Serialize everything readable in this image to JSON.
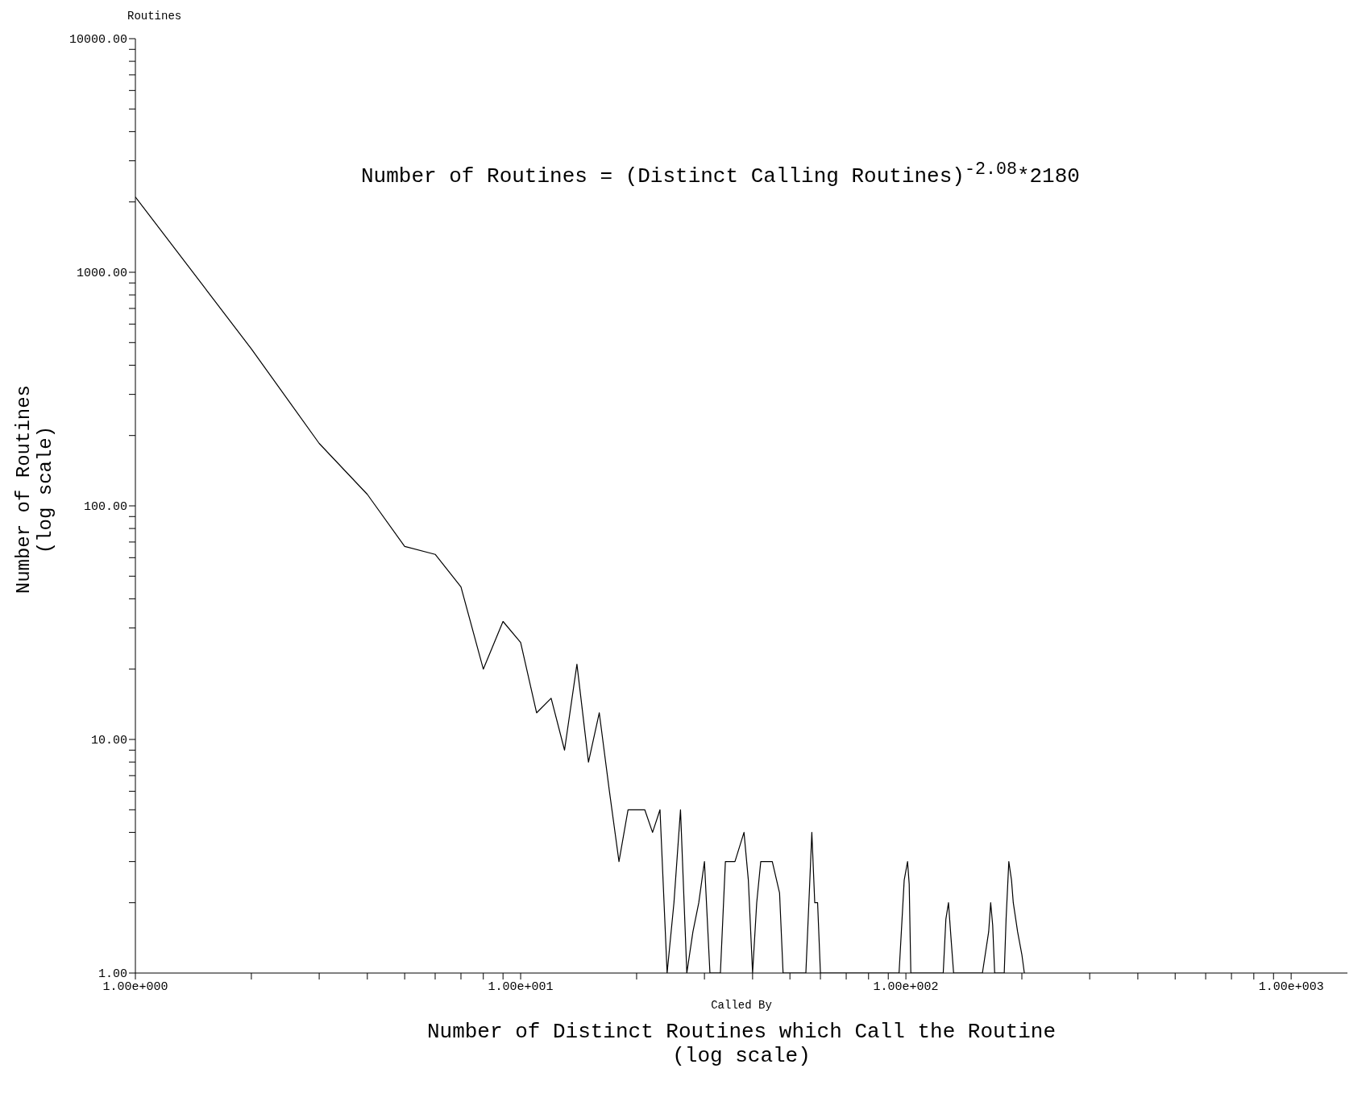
{
  "chart_data": {
    "type": "line",
    "log": "xy",
    "xlabel": "Number of Distinct Routines which Call the Routine\n(log scale)",
    "ylabel": "Number of Routines\n(log scale)",
    "annotations": [
      "Routines",
      "Called By",
      "Number of Routines = (Distinct Calling Routines)$^{-2.08}$*2180"
    ],
    "xlim": [
      1,
      1400
    ],
    "ylim": [
      1,
      10000
    ],
    "xticks": [
      {
        "value": 1,
        "label": "1.00e+000"
      },
      {
        "value": 2,
        "label": null
      },
      {
        "value": 3,
        "label": null
      },
      {
        "value": 4,
        "label": null
      },
      {
        "value": 5,
        "label": null
      },
      {
        "value": 6,
        "label": null
      },
      {
        "value": 7,
        "label": null
      },
      {
        "value": 8,
        "label": null
      },
      {
        "value": 9,
        "label": null
      },
      {
        "value": 10,
        "label": "1.00e+001"
      },
      {
        "value": 20,
        "label": null
      },
      {
        "value": 30,
        "label": null
      },
      {
        "value": 40,
        "label": null
      },
      {
        "value": 50,
        "label": null
      },
      {
        "value": 60,
        "label": null
      },
      {
        "value": 70,
        "label": null
      },
      {
        "value": 80,
        "label": null
      },
      {
        "value": 90,
        "label": null
      },
      {
        "value": 100,
        "label": "1.00e+002"
      },
      {
        "value": 200,
        "label": null
      },
      {
        "value": 300,
        "label": null
      },
      {
        "value": 400,
        "label": null
      },
      {
        "value": 500,
        "label": null
      },
      {
        "value": 600,
        "label": null
      },
      {
        "value": 700,
        "label": null
      },
      {
        "value": 800,
        "label": null
      },
      {
        "value": 900,
        "label": null
      },
      {
        "value": 1000,
        "label": "1.00e+003"
      }
    ],
    "yticks": [
      {
        "value": 1,
        "label": "1.00"
      },
      {
        "value": 2,
        "label": null
      },
      {
        "value": 3,
        "label": null
      },
      {
        "value": 4,
        "label": null
      },
      {
        "value": 5,
        "label": null
      },
      {
        "value": 6,
        "label": null
      },
      {
        "value": 7,
        "label": null
      },
      {
        "value": 8,
        "label": null
      },
      {
        "value": 9,
        "label": null
      },
      {
        "value": 10,
        "label": "10.00"
      },
      {
        "value": 20,
        "label": null
      },
      {
        "value": 30,
        "label": null
      },
      {
        "value": 40,
        "label": null
      },
      {
        "value": 50,
        "label": null
      },
      {
        "value": 60,
        "label": null
      },
      {
        "value": 70,
        "label": null
      },
      {
        "value": 80,
        "label": null
      },
      {
        "value": 90,
        "label": null
      },
      {
        "value": 100,
        "label": "100.00"
      },
      {
        "value": 200,
        "label": null
      },
      {
        "value": 300,
        "label": null
      },
      {
        "value": 400,
        "label": null
      },
      {
        "value": 500,
        "label": null
      },
      {
        "value": 600,
        "label": null
      },
      {
        "value": 700,
        "label": null
      },
      {
        "value": 800,
        "label": null
      },
      {
        "value": 900,
        "label": null
      },
      {
        "value": 1000,
        "label": "1000.00"
      },
      {
        "value": 2000,
        "label": null
      },
      {
        "value": 3000,
        "label": null
      },
      {
        "value": 4000,
        "label": null
      },
      {
        "value": 5000,
        "label": null
      },
      {
        "value": 6000,
        "label": null
      },
      {
        "value": 7000,
        "label": null
      },
      {
        "value": 8000,
        "label": null
      },
      {
        "value": 9000,
        "label": null
      },
      {
        "value": 10000,
        "label": "10000.00"
      }
    ],
    "series": [
      {
        "color": "#000000",
        "x": [
          1,
          2,
          3,
          4,
          5,
          6,
          7,
          8,
          9,
          10,
          11,
          12,
          13,
          14,
          15,
          16,
          17,
          18,
          19,
          20,
          21,
          22,
          23,
          24,
          25,
          26,
          27,
          28,
          29,
          30,
          31,
          33,
          34,
          36,
          38,
          39,
          40,
          41,
          42,
          45,
          47,
          48,
          52,
          55,
          56,
          57,
          58,
          59,
          60,
          96,
          99,
          101,
          102,
          103,
          125,
          127,
          129,
          131,
          133,
          158,
          164,
          166,
          168,
          170,
          180,
          182,
          185,
          188,
          190,
          195,
          200,
          203
        ],
        "values": [
          2100,
          470,
          185,
          112,
          67,
          62,
          45,
          20,
          32,
          26,
          13,
          15,
          9,
          21,
          8,
          13,
          6,
          3,
          5,
          5,
          5,
          4,
          5,
          1,
          2,
          5,
          1,
          1.5,
          2,
          3,
          1,
          1,
          3,
          3,
          4,
          2.5,
          1,
          2,
          3,
          3,
          2.2,
          1,
          1,
          1,
          2,
          4,
          2,
          2,
          1,
          1,
          2.5,
          3,
          2.4,
          1,
          1,
          1.7,
          2,
          1.4,
          1,
          1,
          1.5,
          2,
          1.6,
          1,
          1,
          1.7,
          3,
          2.5,
          2,
          1.5,
          1.2,
          1
        ]
      }
    ]
  }
}
